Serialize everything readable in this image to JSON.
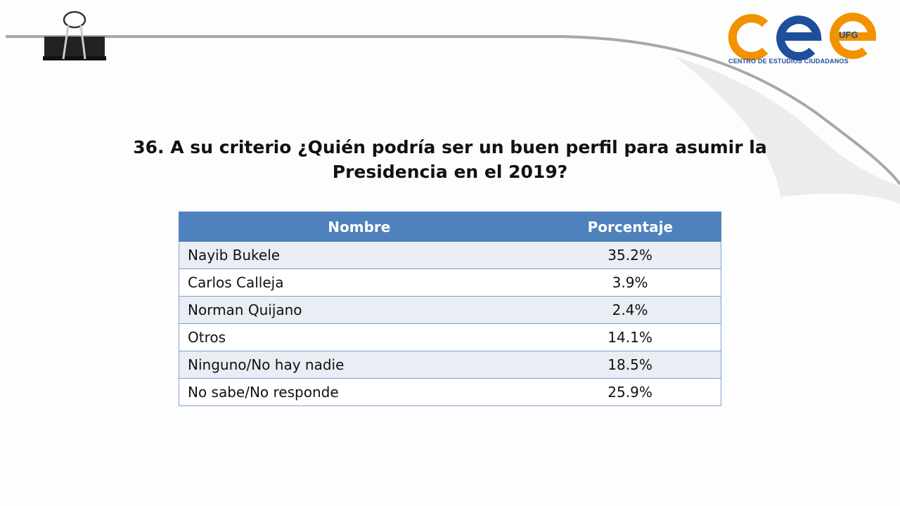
{
  "logo": {
    "text": "CENTRO DE ESTUDIOS CIUDADANOS",
    "badge": "UFG",
    "colors": {
      "orange": "#f39200",
      "blue": "#1f4e9a"
    }
  },
  "decoration": {
    "clip_icon": "binder-clip-icon",
    "page_curl": true
  },
  "title": {
    "line1": "36. A su criterio ¿Quién podría ser un buen perfil para asumir la",
    "line2": "Presidencia en el 2019?"
  },
  "table": {
    "headers": [
      "Nombre",
      "Porcentaje"
    ],
    "header_color": "#4f81bd",
    "rows": [
      {
        "name": "Nayib Bukele",
        "pct": "35.2%"
      },
      {
        "name": "Carlos Calleja",
        "pct": "3.9%"
      },
      {
        "name": "Norman Quijano",
        "pct": "2.4%"
      },
      {
        "name": "Otros",
        "pct": "14.1%"
      },
      {
        "name": "Ninguno/No hay nadie",
        "pct": "18.5%"
      },
      {
        "name": "No sabe/No responde",
        "pct": "25.9%"
      }
    ]
  }
}
